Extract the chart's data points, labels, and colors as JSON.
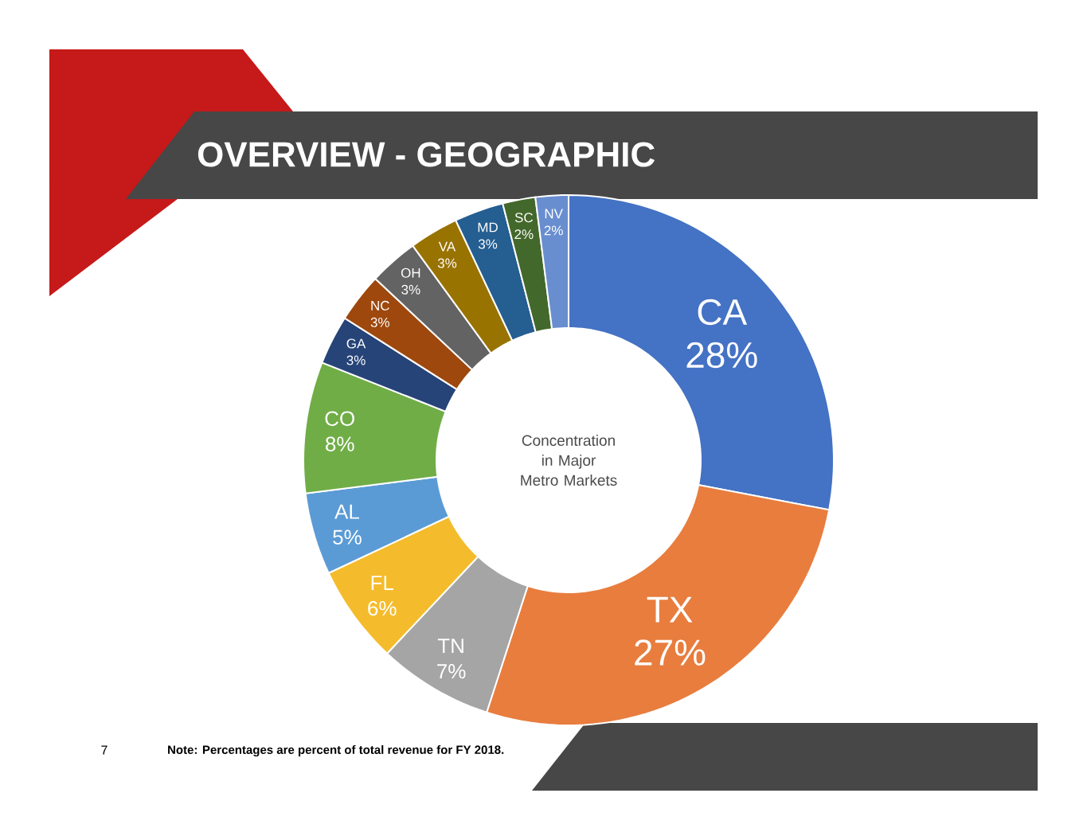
{
  "chart_data": {
    "type": "donut",
    "title": "OVERVIEW - GEOGRAPHIC",
    "categories": [
      "CA",
      "TX",
      "TN",
      "FL",
      "AL",
      "CO",
      "GA",
      "NC",
      "OH",
      "VA",
      "MD",
      "SC",
      "NV"
    ],
    "values": [
      28,
      27,
      7,
      6,
      5,
      8,
      3,
      3,
      3,
      3,
      3,
      2,
      2
    ],
    "value_labels": [
      "28%",
      "27%",
      "7%",
      "6%",
      "5%",
      "8%",
      "3%",
      "3%",
      "3%",
      "3%",
      "3%",
      "2%",
      "2%"
    ],
    "colors": [
      "#4472c4",
      "#e87d3e",
      "#a5a5a5",
      "#f4bc2c",
      "#5b9bd5",
      "#70ad47",
      "#264478",
      "#9e480e",
      "#636363",
      "#997300",
      "#255e91",
      "#43682b",
      "#698ed0"
    ],
    "annotations": [
      "Concentration in Major Metro Markets",
      "Note: Percentages are percent of total revenue for FY 2018.",
      "7"
    ]
  }
}
